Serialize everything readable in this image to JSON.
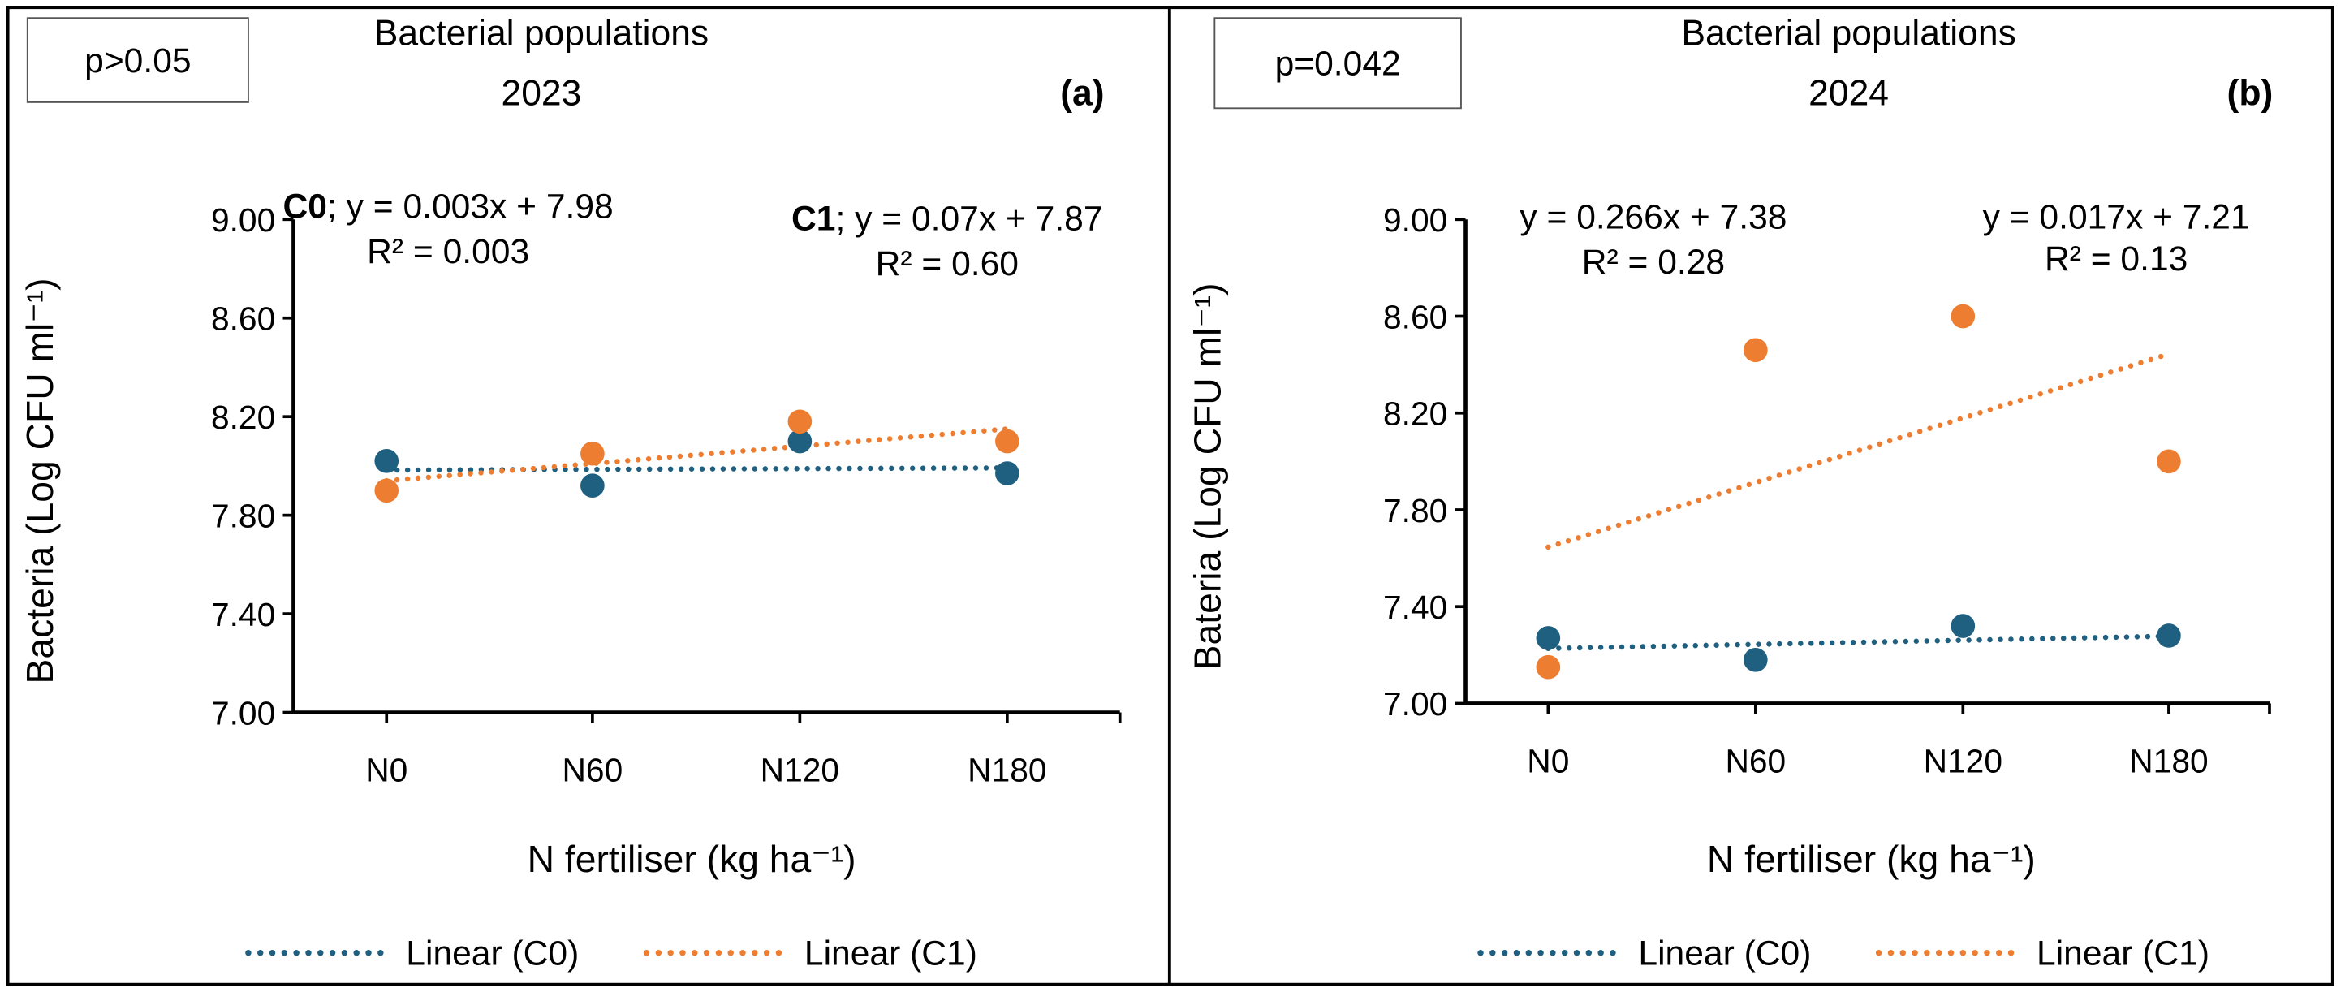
{
  "colors": {
    "C0": "#1f5f7f",
    "C1": "#ed7d31"
  },
  "chart_data": [
    {
      "type": "scatter",
      "panel_label": "(a)",
      "title": [
        "Bacterial populations",
        "2023"
      ],
      "p_value": "p>0.05",
      "xlabel": "N fertiliser (kg ha⁻¹)",
      "ylabel": "Bacteria (Log CFU ml⁻¹)",
      "categories": [
        "N0",
        "N60",
        "N120",
        "N180"
      ],
      "ylim": [
        7.0,
        9.0
      ],
      "yticks": [
        "7.00",
        "7.40",
        "7.80",
        "8.20",
        "8.60",
        "9.00"
      ],
      "series": [
        {
          "name": "C0",
          "values": [
            8.02,
            7.92,
            8.1,
            7.97
          ],
          "trend": {
            "slope": 0.003,
            "intercept": 7.98
          },
          "eq_prefix": "C0",
          "equation": "; y = 0.003x + 7.98",
          "r2": "R² = 0.003"
        },
        {
          "name": "C1",
          "values": [
            7.9,
            8.05,
            8.18,
            8.1
          ],
          "trend": {
            "slope": 0.07,
            "intercept": 7.87
          },
          "eq_prefix": "C1",
          "equation": "; y = 0.07x + 7.87",
          "r2": "R² = 0.60"
        }
      ],
      "legend": [
        "Linear (C0)",
        "Linear (C1)"
      ],
      "legend_position": "bottom"
    },
    {
      "type": "scatter",
      "panel_label": "(b)",
      "title": [
        "Bacterial populations",
        "2024"
      ],
      "p_value": "p=0.042",
      "xlabel": "N fertiliser (kg ha⁻¹)",
      "ylabel": "Bateria (Log CFU ml⁻¹)",
      "categories": [
        "N0",
        "N60",
        "N120",
        "N180"
      ],
      "ylim": [
        7.0,
        9.0
      ],
      "yticks": [
        "7.00",
        "7.40",
        "7.80",
        "8.20",
        "8.60",
        "9.00"
      ],
      "series": [
        {
          "name": "C0",
          "values": [
            7.27,
            7.18,
            7.32,
            7.28
          ],
          "trend": {
            "slope": 0.017,
            "intercept": 7.21
          },
          "eq_prefix": "",
          "equation": "y = 0.017x + 7.21",
          "r2": "R² = 0.13"
        },
        {
          "name": "C1",
          "values": [
            7.15,
            8.46,
            8.6,
            8.0
          ],
          "trend": {
            "slope": 0.266,
            "intercept": 7.38
          },
          "eq_prefix": "",
          "equation": "y = 0.266x + 7.38",
          "r2": "R² = 0.28"
        }
      ],
      "legend": [
        "Linear (C0)",
        "Linear (C1)"
      ],
      "legend_position": "bottom"
    }
  ]
}
